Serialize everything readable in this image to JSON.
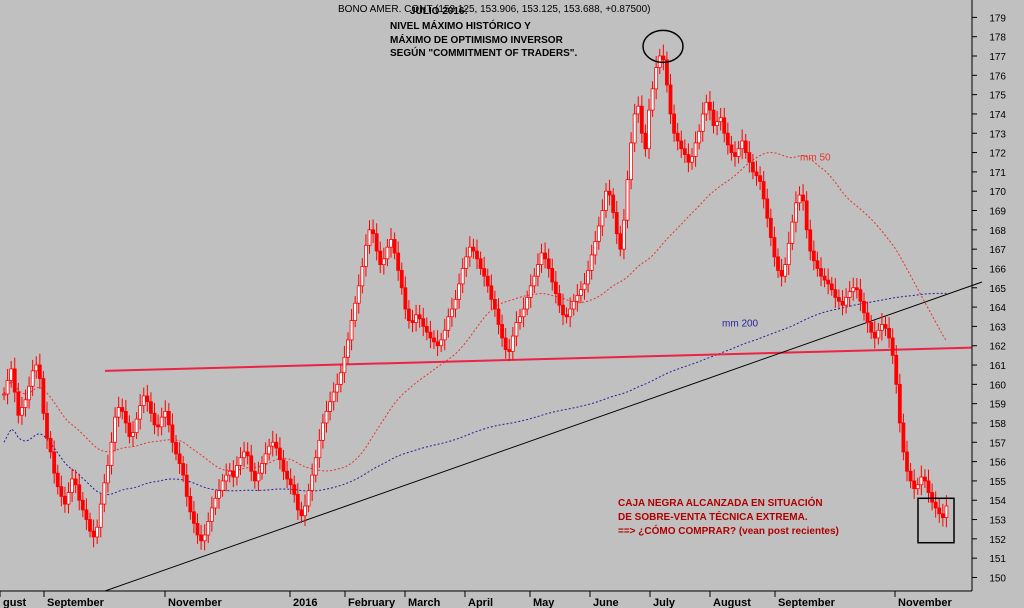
{
  "chart_data": {
    "type": "candlestick",
    "header": "BONO AMER. CONT (153.125, 153.906, 153.125, 153.688, +0.87500)",
    "title_annotation": {
      "lines": [
        "JULIO 2016:",
        "NIVEL MÁXIMO HISTÓRICO  Y",
        "MÁXIMO DE OPTIMISMO INVERSOR",
        "SEGÚN \"COMMITMENT OF TRADERS\"."
      ]
    },
    "bottom_annotation": {
      "lines": [
        "CAJA NEGRA ALCANZADA EN SITUACIÓN",
        "DE SOBRE-VENTA TÉCNICA EXTREMA.",
        "==> ¿CÓMO COMPRAR? (vean post recientes)"
      ]
    },
    "ma_labels": {
      "mm50": "mm 50",
      "mm200": "mm 200"
    },
    "ylim": [
      149.3,
      179.9
    ],
    "yticks": [
      150,
      151,
      152,
      153,
      154,
      155,
      156,
      157,
      158,
      159,
      160,
      161,
      162,
      163,
      164,
      165,
      166,
      167,
      168,
      169,
      170,
      171,
      172,
      173,
      174,
      175,
      176,
      177,
      178,
      179
    ],
    "xticks": [
      "gust",
      "September",
      "November",
      "2016",
      "February",
      "March",
      "April",
      "May",
      "June",
      "July",
      "August",
      "September",
      "November"
    ],
    "colors": {
      "background": "#c0c0c0",
      "candles": "#ff0000",
      "ma50": "#e8342a",
      "ma200": "#2b1f9c",
      "support": "#ee2244",
      "trendline": "#000000",
      "annotation_red": "#b00000"
    },
    "close": [
      159.5,
      160.2,
      160.8,
      159.6,
      158.4,
      158.8,
      159.2,
      159.9,
      160.7,
      161.0,
      160.3,
      158.5,
      157.2,
      156.5,
      155.4,
      154.7,
      154.2,
      153.8,
      154.4,
      155.1,
      154.8,
      154.0,
      153.5,
      153.0,
      152.4,
      152.1,
      152.6,
      153.8,
      154.9,
      155.8,
      157.0,
      158.3,
      158.8,
      158.6,
      158.0,
      157.3,
      157.5,
      158.2,
      158.9,
      159.4,
      159.1,
      158.5,
      157.9,
      157.8,
      158.3,
      158.6,
      157.9,
      157.0,
      156.4,
      155.9,
      155.3,
      154.2,
      153.4,
      152.8,
      152.2,
      151.9,
      152.2,
      152.9,
      153.6,
      154.1,
      154.5,
      155.0,
      155.3,
      155.5,
      155.2,
      155.8,
      156.2,
      156.5,
      156.3,
      155.5,
      155.0,
      155.4,
      155.9,
      156.4,
      156.8,
      157.0,
      156.7,
      156.1,
      155.5,
      155.1,
      154.8,
      154.3,
      153.5,
      153.2,
      153.7,
      154.5,
      155.3,
      156.2,
      157.1,
      158.0,
      158.6,
      159.1,
      159.6,
      160.0,
      160.6,
      161.4,
      162.3,
      163.3,
      164.2,
      165.1,
      166.1,
      167.2,
      168.0,
      167.8,
      166.9,
      166.2,
      166.5,
      167.1,
      167.5,
      166.8,
      165.9,
      165.0,
      163.9,
      163.3,
      163.2,
      163.6,
      163.4,
      163.0,
      162.7,
      162.4,
      162.2,
      162.0,
      162.3,
      162.8,
      163.5,
      163.9,
      164.4,
      165.2,
      166.0,
      166.6,
      167.1,
      166.9,
      166.5,
      166.0,
      165.6,
      165.1,
      164.4,
      163.9,
      163.1,
      162.4,
      161.8,
      161.7,
      162.5,
      163.2,
      163.5,
      163.9,
      164.5,
      165.1,
      165.6,
      166.2,
      166.8,
      166.5,
      166.0,
      165.3,
      164.7,
      164.1,
      163.6,
      163.5,
      163.9,
      164.3,
      164.6,
      164.9,
      165.2,
      165.9,
      166.7,
      167.4,
      168.2,
      169.0,
      170.0,
      169.8,
      168.9,
      167.8,
      167.0,
      168.5,
      170.6,
      172.5,
      174.0,
      174.4,
      173.0,
      172.2,
      174.2,
      175.3,
      176.4,
      177.0,
      176.8,
      175.5,
      174.0,
      173.0,
      172.6,
      172.2,
      171.9,
      171.5,
      171.8,
      172.5,
      173.1,
      174.0,
      174.6,
      174.2,
      173.4,
      173.6,
      173.8,
      173.0,
      172.4,
      172.0,
      171.8,
      172.2,
      172.6,
      172.0,
      171.5,
      171.0,
      170.8,
      170.5,
      169.6,
      168.6,
      167.6,
      166.6,
      165.9,
      165.6,
      166.2,
      167.3,
      168.4,
      169.4,
      169.8,
      169.5,
      168.0,
      166.9,
      166.4,
      166.0,
      165.6,
      165.4,
      165.2,
      164.9,
      164.5,
      164.3,
      164.1,
      164.5,
      164.8,
      165.0,
      164.9,
      164.3,
      163.7,
      163.2,
      162.7,
      162.4,
      162.8,
      163.1,
      162.9,
      162.4,
      161.5,
      160.0,
      158.0,
      156.5,
      155.5,
      155.0,
      154.6,
      154.8,
      155.2,
      155.0,
      154.4,
      153.9,
      153.6,
      153.3,
      153.1,
      153.7
    ]
  }
}
